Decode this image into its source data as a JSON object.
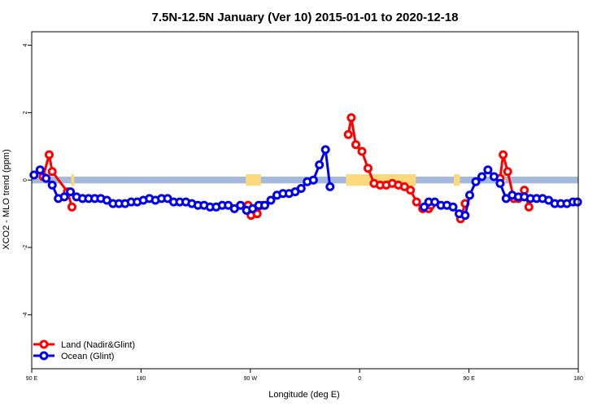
{
  "chart_data": {
    "type": "line",
    "title": "7.5N-12.5N January (Ver 10)   2015-01-01 to 2020-12-18",
    "xlabel": "Longitude (deg E)",
    "ylabel": "XCO2 - MLO trend (ppm)",
    "xlim": [
      90,
      450
    ],
    "ylim": [
      -5.6,
      4.4
    ],
    "x_ticks": [
      {
        "value": 90,
        "label": "90 E"
      },
      {
        "value": 162,
        "label": "180"
      },
      {
        "value": 234,
        "label": "90 W"
      },
      {
        "value": 306,
        "label": "0"
      },
      {
        "value": 378,
        "label": "90 E"
      },
      {
        "value": 450,
        "label": "180"
      }
    ],
    "y_ticks": [
      {
        "value": -4,
        "label": "-4"
      },
      {
        "value": -2,
        "label": "-2"
      },
      {
        "value": 0,
        "label": "0"
      },
      {
        "value": 2,
        "label": "2"
      },
      {
        "value": 4,
        "label": "4"
      }
    ],
    "colors": {
      "land": "#ff0000",
      "ocean": "#0000ee",
      "band_ocean": "#a3b9dd",
      "band_land": "#fcd97c"
    },
    "legend_position": "bottom-left",
    "legend": [
      {
        "label": "Land (Nadir&Glint)",
        "color": "#ff0000"
      },
      {
        "label": "Ocean (Glint)",
        "color": "#0000ee"
      }
    ],
    "band": {
      "ymin": -0.1,
      "ymax": 0.1
    },
    "land_band_segments": [
      [
        116,
        118
      ],
      [
        231,
        241
      ],
      [
        297,
        343
      ],
      [
        368,
        372
      ],
      [
        400,
        402
      ]
    ],
    "series": [
      {
        "name": "Land (Nadir&Glint)",
        "color": "#ff0000",
        "segments": [
          [
            [
              97.5,
              0.1
            ],
            [
              101.5,
              0.75
            ],
            [
              103.5,
              0.25
            ],
            [
              113.5,
              -0.35
            ],
            [
              116.5,
              -0.8
            ]
          ],
          [
            [
              232.5,
              -0.75
            ],
            [
              234.5,
              -1.05
            ],
            [
              238.5,
              -1.0
            ],
            [
              242,
              -0.75
            ]
          ],
          [
            [
              298.5,
              1.35
            ],
            [
              300.5,
              1.85
            ],
            [
              303.5,
              1.05
            ],
            [
              307.5,
              0.85
            ],
            [
              311.5,
              0.35
            ],
            [
              315.5,
              -0.1
            ],
            [
              319.5,
              -0.15
            ],
            [
              323.5,
              -0.15
            ],
            [
              327.5,
              -0.1
            ],
            [
              331.5,
              -0.15
            ],
            [
              335.5,
              -0.2
            ],
            [
              339.5,
              -0.3
            ],
            [
              343.5,
              -0.65
            ],
            [
              347.5,
              -0.85
            ],
            [
              351.5,
              -0.85
            ],
            [
              353,
              -0.75
            ]
          ],
          [
            [
              372.5,
              -1.15
            ],
            [
              375.5,
              -0.7
            ]
          ],
          [
            [
              398.5,
              0.05
            ],
            [
              400.5,
              0.75
            ],
            [
              403.5,
              0.25
            ],
            [
              407.5,
              -0.55
            ],
            [
              410.5,
              -0.55
            ],
            [
              414.5,
              -0.3
            ],
            [
              417.5,
              -0.8
            ]
          ]
        ]
      },
      {
        "name": "Ocean (Glint)",
        "color": "#0000ee",
        "segments": [
          [
            [
              91.5,
              0.15
            ],
            [
              95.5,
              0.3
            ],
            [
              99.5,
              0.05
            ],
            [
              103.5,
              -0.15
            ],
            [
              107.5,
              -0.55
            ],
            [
              111.5,
              -0.5
            ],
            [
              115.5,
              -0.35
            ],
            [
              119.5,
              -0.5
            ],
            [
              123.5,
              -0.55
            ],
            [
              127.5,
              -0.55
            ],
            [
              131.5,
              -0.55
            ],
            [
              135.5,
              -0.55
            ],
            [
              139.5,
              -0.6
            ],
            [
              143.5,
              -0.7
            ],
            [
              147.5,
              -0.7
            ],
            [
              151.5,
              -0.7
            ],
            [
              155.5,
              -0.65
            ],
            [
              159.5,
              -0.65
            ],
            [
              163.5,
              -0.6
            ],
            [
              167.5,
              -0.55
            ],
            [
              171.5,
              -0.6
            ],
            [
              175.5,
              -0.55
            ],
            [
              179.5,
              -0.55
            ],
            [
              183.5,
              -0.65
            ],
            [
              187.5,
              -0.65
            ],
            [
              191.5,
              -0.65
            ],
            [
              195.5,
              -0.7
            ],
            [
              199.5,
              -0.75
            ],
            [
              203.5,
              -0.75
            ],
            [
              207.5,
              -0.8
            ],
            [
              211.5,
              -0.8
            ],
            [
              215.5,
              -0.75
            ],
            [
              219.5,
              -0.75
            ],
            [
              223.5,
              -0.85
            ],
            [
              227.5,
              -0.75
            ],
            [
              231.5,
              -0.9
            ],
            [
              235.5,
              -0.85
            ],
            [
              239.5,
              -0.75
            ],
            [
              243.5,
              -0.75
            ],
            [
              247.5,
              -0.6
            ],
            [
              251.5,
              -0.45
            ],
            [
              255.5,
              -0.4
            ],
            [
              259.5,
              -0.4
            ],
            [
              263.5,
              -0.35
            ],
            [
              267.5,
              -0.25
            ],
            [
              271.5,
              -0.05
            ],
            [
              275.5,
              0.0
            ],
            [
              279.5,
              0.45
            ],
            [
              283.5,
              0.9
            ],
            [
              286.5,
              -0.2
            ]
          ],
          [
            [
              348.5,
              -0.8
            ],
            [
              351.5,
              -0.65
            ],
            [
              355.5,
              -0.65
            ],
            [
              359.5,
              -0.75
            ],
            [
              363.5,
              -0.75
            ],
            [
              367.5,
              -0.8
            ],
            [
              371.5,
              -1.0
            ],
            [
              375.5,
              -1.05
            ],
            [
              378.5,
              -0.45
            ],
            [
              382.5,
              -0.05
            ],
            [
              386.5,
              0.1
            ],
            [
              390.5,
              0.3
            ],
            [
              394.5,
              0.1
            ],
            [
              398.5,
              -0.1
            ],
            [
              402.5,
              -0.55
            ],
            [
              406.5,
              -0.45
            ],
            [
              410.5,
              -0.5
            ],
            [
              414.5,
              -0.5
            ],
            [
              418.5,
              -0.55
            ],
            [
              422.5,
              -0.55
            ],
            [
              426.5,
              -0.55
            ],
            [
              430.5,
              -0.6
            ],
            [
              434.5,
              -0.7
            ],
            [
              438.5,
              -0.7
            ],
            [
              442.5,
              -0.7
            ],
            [
              446.5,
              -0.65
            ],
            [
              449.5,
              -0.65
            ]
          ]
        ]
      }
    ]
  }
}
